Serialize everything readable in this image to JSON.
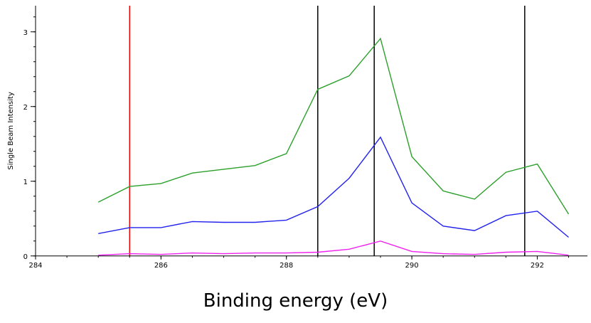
{
  "chart_data": {
    "type": "line",
    "title": "",
    "xlabel": "Binding energy (eV)",
    "ylabel": "Single Beam Intensity",
    "xlim": [
      284,
      292.8
    ],
    "ylim": [
      -0.05,
      3.35
    ],
    "x_ticks": [
      284,
      286,
      288,
      290,
      292
    ],
    "x_tick_labels": [
      "284",
      "286",
      "288",
      "290",
      "292"
    ],
    "y_ticks": [
      0,
      1,
      2,
      3
    ],
    "y_tick_labels": [
      "0",
      "1",
      "2",
      "3"
    ],
    "grid": false,
    "legend": "none",
    "series": [
      {
        "color": "#2ca02c",
        "x": [
          285.0,
          285.5,
          286.0,
          286.5,
          287.0,
          287.5,
          288.0,
          288.5,
          289.0,
          289.5,
          290.0,
          290.5,
          291.0,
          291.5,
          292.0,
          292.5
        ],
        "y": [
          0.72,
          0.93,
          0.97,
          1.11,
          1.16,
          1.21,
          1.37,
          2.23,
          2.41,
          2.91,
          1.33,
          0.87,
          0.76,
          1.12,
          1.23,
          0.56
        ]
      },
      {
        "color": "#2222ee",
        "x": [
          285.0,
          285.5,
          286.0,
          286.5,
          287.0,
          287.5,
          288.0,
          288.5,
          289.0,
          289.5,
          290.0,
          290.5,
          291.0,
          291.5,
          292.0,
          292.5
        ],
        "y": [
          0.3,
          0.38,
          0.38,
          0.46,
          0.45,
          0.45,
          0.48,
          0.66,
          1.04,
          1.59,
          0.71,
          0.4,
          0.34,
          0.54,
          0.6,
          0.25
        ]
      },
      {
        "color": "#ee22ee",
        "x": [
          285.0,
          285.5,
          286.0,
          286.5,
          287.0,
          287.5,
          288.0,
          288.5,
          289.0,
          289.5,
          290.0,
          290.5,
          291.0,
          291.5,
          292.0,
          292.5
        ],
        "y": [
          0.01,
          0.03,
          0.02,
          0.04,
          0.03,
          0.04,
          0.04,
          0.05,
          0.09,
          0.2,
          0.06,
          0.03,
          0.02,
          0.05,
          0.06,
          0.01
        ]
      }
    ],
    "reference_lines": [
      {
        "x": 285.5,
        "color": "#ff0000"
      },
      {
        "x": 288.5,
        "color": "#000000"
      },
      {
        "x": 289.4,
        "color": "#000000"
      },
      {
        "x": 291.8,
        "color": "#000000"
      }
    ]
  }
}
